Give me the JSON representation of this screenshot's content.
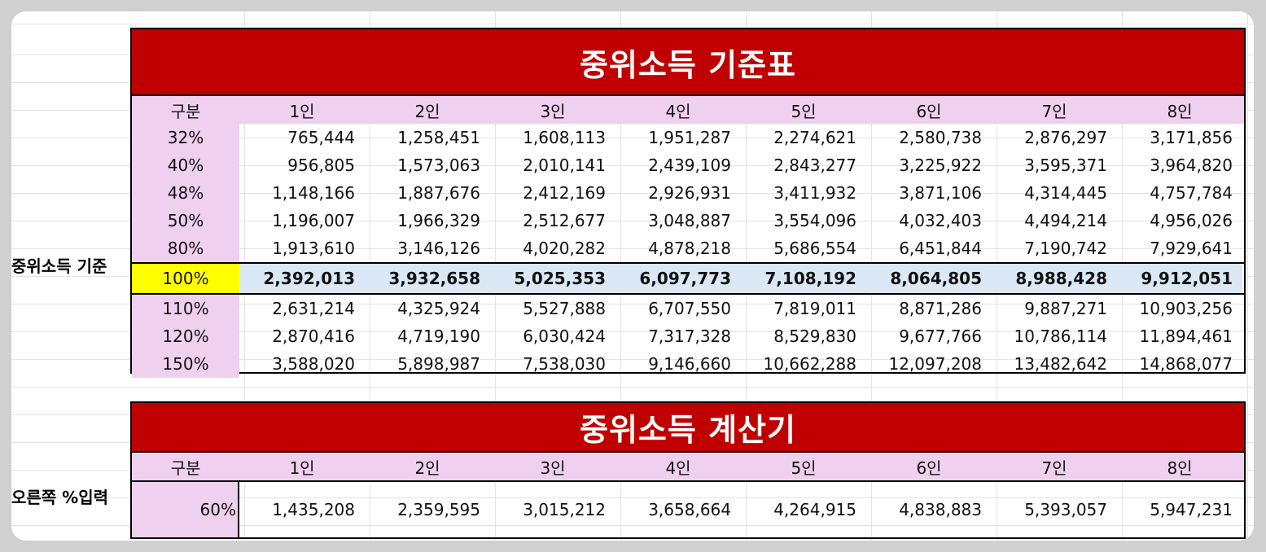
{
  "table": {
    "title": "중위소득 기준표",
    "headers": [
      "구분",
      "1인",
      "2인",
      "3인",
      "4인",
      "5인",
      "6인",
      "7인",
      "8인"
    ],
    "side_label": "중위소득 기준",
    "rows": [
      [
        "32%",
        "765,444",
        "1,258,451",
        "1,608,113",
        "1,951,287",
        "2,274,621",
        "2,580,738",
        "2,876,297",
        "3,171,856"
      ],
      [
        "40%",
        "956,805",
        "1,573,063",
        "2,010,141",
        "2,439,109",
        "2,843,277",
        "3,225,922",
        "3,595,371",
        "3,964,820"
      ],
      [
        "48%",
        "1,148,166",
        "1,887,676",
        "2,412,169",
        "2,926,931",
        "3,411,932",
        "3,871,106",
        "4,314,445",
        "4,757,784"
      ],
      [
        "50%",
        "1,196,007",
        "1,966,329",
        "2,512,677",
        "3,048,887",
        "3,554,096",
        "4,032,403",
        "4,494,214",
        "4,956,026"
      ],
      [
        "80%",
        "1,913,610",
        "3,146,126",
        "4,020,282",
        "4,878,218",
        "5,686,554",
        "6,451,844",
        "7,190,742",
        "7,929,641"
      ],
      [
        "100%",
        "2,392,013",
        "3,932,658",
        "5,025,353",
        "6,097,773",
        "7,108,192",
        "8,064,805",
        "8,988,428",
        "9,912,051"
      ],
      [
        "110%",
        "2,631,214",
        "4,325,924",
        "5,527,888",
        "6,707,550",
        "7,819,011",
        "8,871,286",
        "9,887,271",
        "10,903,256"
      ],
      [
        "120%",
        "2,870,416",
        "4,719,190",
        "6,030,424",
        "7,317,328",
        "8,529,830",
        "9,677,766",
        "10,786,114",
        "11,894,461"
      ],
      [
        "150%",
        "3,588,020",
        "5,898,987",
        "7,538,030",
        "9,146,660",
        "10,662,288",
        "12,097,208",
        "13,482,642",
        "14,868,077"
      ]
    ]
  },
  "calculator": {
    "title": "중위소득 계산기",
    "headers": [
      "구분",
      "1인",
      "2인",
      "3인",
      "4인",
      "5인",
      "6인",
      "7인",
      "8인"
    ],
    "side_label": "오른쪽 %입력",
    "input_value": "60%",
    "values": [
      "1,435,208",
      "2,359,595",
      "3,015,212",
      "3,658,664",
      "4,264,915",
      "4,838,883",
      "5,393,057",
      "5,947,231"
    ]
  }
}
